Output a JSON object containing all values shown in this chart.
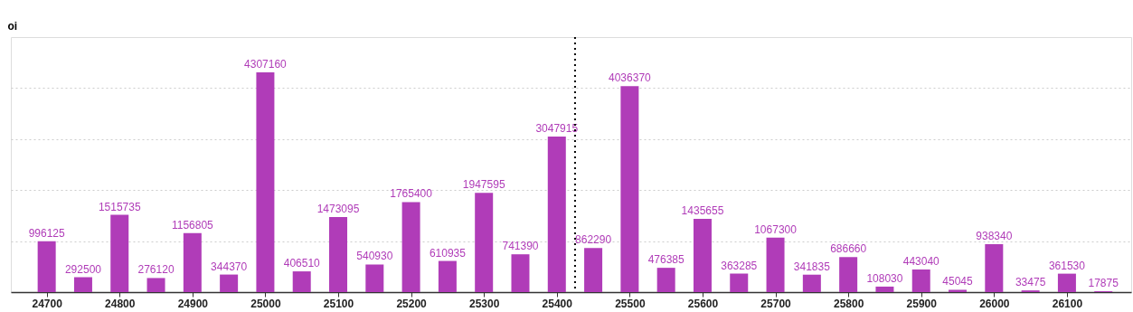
{
  "chart_data": {
    "type": "bar",
    "ylabel": "oi",
    "x": [
      24700,
      24750,
      24800,
      24850,
      24900,
      24950,
      25000,
      25050,
      25100,
      25150,
      25200,
      25250,
      25300,
      25350,
      25400,
      25450,
      25500,
      25550,
      25600,
      25650,
      25700,
      25750,
      25800,
      25850,
      25900,
      25950,
      26000,
      26050,
      26100,
      26150
    ],
    "values": [
      996125,
      292500,
      1515735,
      276120,
      1156805,
      344370,
      4307160,
      406510,
      1473095,
      540930,
      1765400,
      610935,
      1947595,
      741390,
      3047915,
      862290,
      4036370,
      476385,
      1435655,
      363285,
      1067300,
      341835,
      686660,
      108030,
      443040,
      45045,
      938340,
      33475,
      361530,
      17875
    ],
    "color": "#b03cb8",
    "data_labels": true,
    "xlim": [
      24657,
      26182
    ],
    "xticks": [
      24700,
      24800,
      24900,
      25000,
      25100,
      25200,
      25300,
      25400,
      25500,
      25600,
      25700,
      25800,
      25900,
      26000,
      26100
    ],
    "ylim": [
      0,
      5000000
    ],
    "yticks": [
      {
        "value": 1000000,
        "label": null
      },
      {
        "value": 2000000,
        "label": null
      },
      {
        "value": 3000000,
        "label": null
      },
      {
        "value": 4000000,
        "label": null
      }
    ],
    "grid": "y",
    "tick_labels": "x",
    "ref_lines": [
      {
        "axis": "x",
        "value": 25425,
        "color": "#000000",
        "line_style": "dotted"
      }
    ]
  }
}
